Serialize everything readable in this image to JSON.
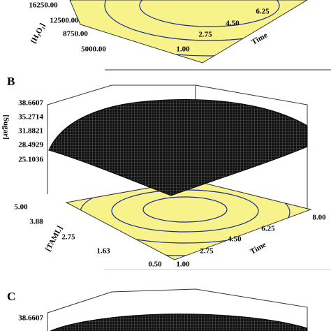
{
  "panel_a": {
    "factor_axis": {
      "label": "[H₂O₂]",
      "ticks": [
        "16250.00",
        "12500.00",
        "8750.00",
        "5000.00"
      ]
    },
    "time_axis": {
      "label": "Time",
      "ticks": [
        "1.00",
        "2.75",
        "4.50",
        "6.25"
      ]
    }
  },
  "panel_b": {
    "label": "B",
    "response_axis": {
      "label": "[Sugar]",
      "ticks": [
        "38.6607",
        "35.2714",
        "31.8821",
        "28.4929",
        "25.1036"
      ]
    },
    "factor_axis": {
      "label": "[TAML]",
      "ticks": [
        "5.00",
        "3.88",
        "2.75",
        "1.63",
        "0.50"
      ]
    },
    "time_axis": {
      "label": "Time",
      "ticks": [
        "1.00",
        "2.75",
        "4.50",
        "6.25",
        "8.00"
      ]
    }
  },
  "panel_c": {
    "label": "C",
    "response_axis": {
      "ticks": [
        "38.6607"
      ]
    }
  }
}
